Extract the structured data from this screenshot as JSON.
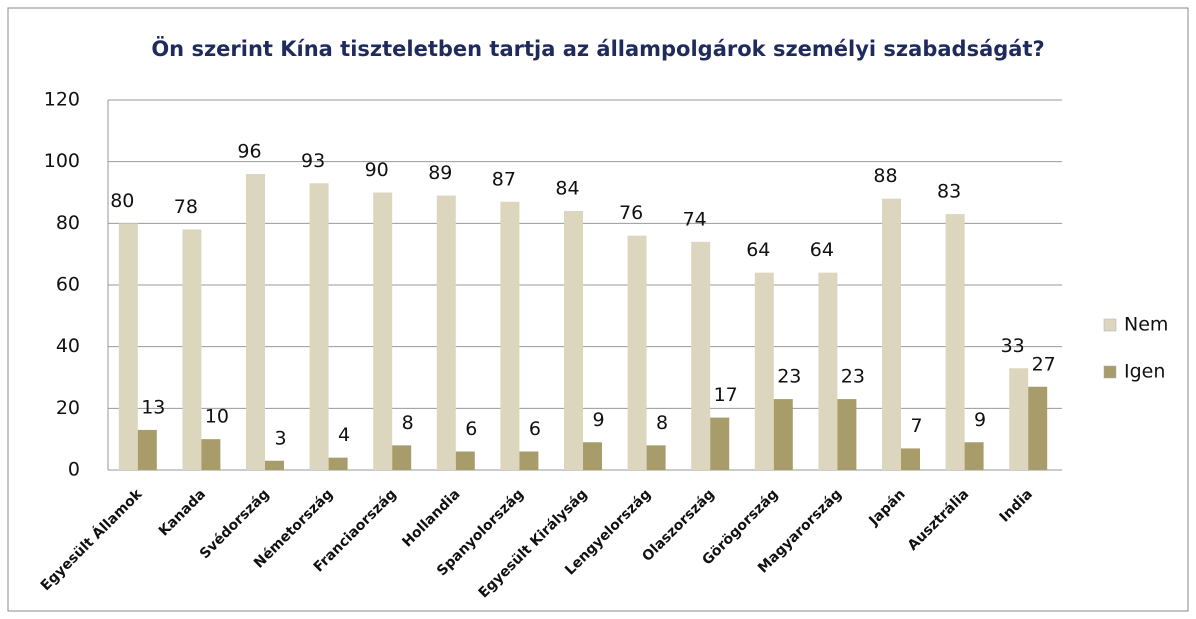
{
  "chart_data": {
    "type": "bar",
    "title": "Ön szerint Kína tiszteletben tartja az állampolgárok személyi szabadságát?",
    "categories": [
      "Egyesült Államok",
      "Kanada",
      "Svédország",
      "Németország",
      "Franciaország",
      "Hollandia",
      "Spanyolország",
      "Egyesült Királyság",
      "Lengyelország",
      "Olaszország",
      "Görögország",
      "Magyarország",
      "Japán",
      "Ausztrália",
      "India"
    ],
    "series": [
      {
        "name": "Nem",
        "color": "#ddd6bf",
        "values": [
          80,
          78,
          96,
          93,
          90,
          89,
          87,
          84,
          76,
          74,
          64,
          64,
          88,
          83,
          33
        ]
      },
      {
        "name": "Igen",
        "color": "#a89d6a",
        "values": [
          13,
          10,
          3,
          4,
          8,
          6,
          6,
          9,
          8,
          17,
          23,
          23,
          7,
          9,
          27
        ]
      }
    ],
    "ylim": [
      0,
      120
    ],
    "yticks": [
      0,
      20,
      40,
      60,
      80,
      100,
      120
    ],
    "grid": true,
    "legend": "right"
  }
}
